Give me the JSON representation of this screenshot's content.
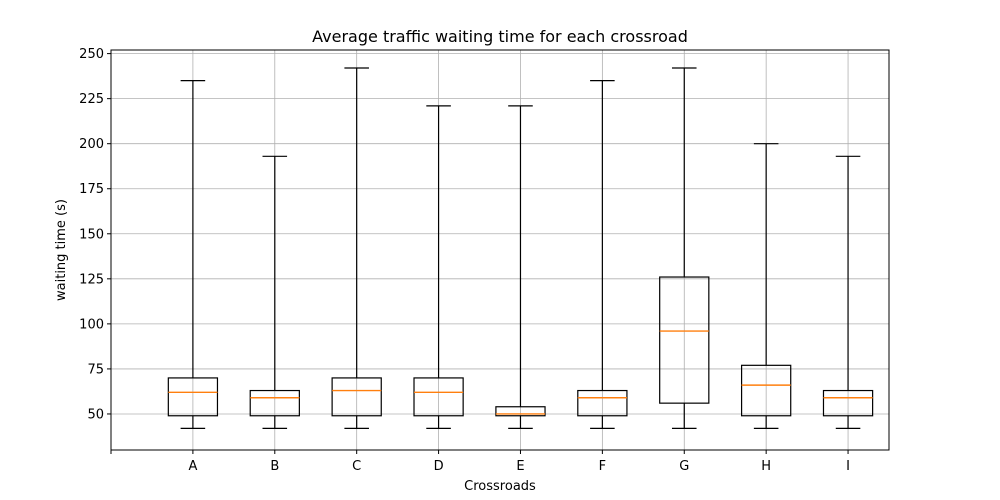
{
  "chart_data": {
    "type": "boxplot",
    "title": "Average traffic waiting time for each crossroad",
    "xlabel": "Crossroads",
    "ylabel": "waiting time (s)",
    "categories": [
      "A",
      "B",
      "C",
      "D",
      "E",
      "F",
      "G",
      "H",
      "I"
    ],
    "boxes": [
      {
        "label": "A",
        "whisker_low": 42,
        "q1": 49,
        "median": 62,
        "q3": 70,
        "whisker_high": 235
      },
      {
        "label": "B",
        "whisker_low": 42,
        "q1": 49,
        "median": 59,
        "q3": 63,
        "whisker_high": 193
      },
      {
        "label": "C",
        "whisker_low": 42,
        "q1": 49,
        "median": 63,
        "q3": 70,
        "whisker_high": 242
      },
      {
        "label": "D",
        "whisker_low": 42,
        "q1": 49,
        "median": 62,
        "q3": 70,
        "whisker_high": 221
      },
      {
        "label": "E",
        "whisker_low": 42,
        "q1": 49,
        "median": 50,
        "q3": 54,
        "whisker_high": 221
      },
      {
        "label": "F",
        "whisker_low": 42,
        "q1": 49,
        "median": 59,
        "q3": 63,
        "whisker_high": 235
      },
      {
        "label": "G",
        "whisker_low": 42,
        "q1": 56,
        "median": 96,
        "q3": 126,
        "whisker_high": 242
      },
      {
        "label": "H",
        "whisker_low": 42,
        "q1": 49,
        "median": 66,
        "q3": 77,
        "whisker_high": 200
      },
      {
        "label": "I",
        "whisker_low": 42,
        "q1": 49,
        "median": 59,
        "q3": 63,
        "whisker_high": 193
      }
    ],
    "yticks": [
      50,
      75,
      100,
      125,
      150,
      175,
      200,
      225,
      250
    ],
    "ylim": [
      30,
      252
    ],
    "xlim": [
      0,
      9.5
    ],
    "grid": true,
    "colors": {
      "box": "#000000",
      "median": "#ff7f0e",
      "grid": "#b0b0b0",
      "axis": "#000000"
    }
  }
}
